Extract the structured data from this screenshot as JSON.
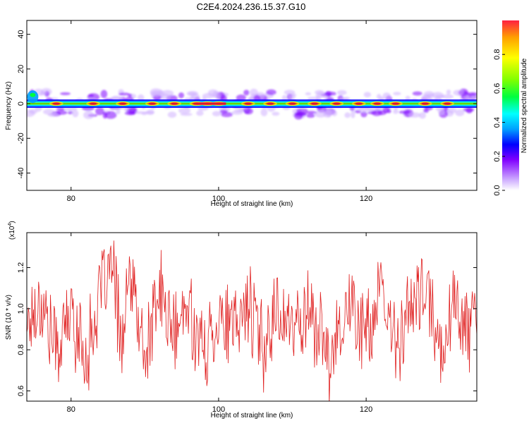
{
  "title": "C2E4.2024.236.15.37.G10",
  "chart_data": [
    {
      "type": "heatmap",
      "xlabel": "Height of straight line (km)",
      "ylabel": "Frequency (Hz)",
      "xlim": [
        74,
        135
      ],
      "ylim": [
        -50,
        48
      ],
      "xticks": [
        80,
        100,
        120
      ],
      "yticks": [
        40,
        20,
        0,
        -20,
        -40
      ],
      "ridge_frequency_hz": 0,
      "ridge_peaks_km": [
        78,
        83,
        87,
        91,
        94,
        97,
        98.5,
        100,
        104,
        107,
        110,
        113,
        116,
        119,
        121.5,
        124,
        128,
        131
      ],
      "colorbar": {
        "label": "Normalized spectral amplitude",
        "range": [
          0,
          1
        ],
        "ticks": [
          "0.0",
          "0.2",
          "0.4",
          "0.6",
          "0.8"
        ]
      },
      "colormap": [
        "#ffffff",
        "#d0b0ff",
        "#8000ff",
        "#0000ff",
        "#00a0ff",
        "#00ffff",
        "#00ff40",
        "#80ff00",
        "#ffff00",
        "#ffa000",
        "#ff2040"
      ]
    },
    {
      "type": "line",
      "xlabel": "Height of straight line (km)",
      "ylabel": "SNR (10 * v/v)",
      "exponent_label": "(x10^4)",
      "exponent_base": "(x10",
      "exponent_power": "4",
      "exponent_close": ")",
      "xlim": [
        74,
        135
      ],
      "ylim": [
        0.55,
        1.37
      ],
      "xticks": [
        80,
        100,
        120
      ],
      "yticks": [
        "0.6",
        "0.8",
        "1.0",
        "1.2"
      ],
      "line_color": "#e02020",
      "x_start": 74,
      "x_step": 0.1,
      "y_seed": 17,
      "approx_points": [
        [
          74,
          0.93
        ],
        [
          76,
          1.1
        ],
        [
          78,
          0.7
        ],
        [
          80,
          1.0
        ],
        [
          82,
          0.63
        ],
        [
          84,
          1.15
        ],
        [
          85.5,
          1.37
        ],
        [
          87,
          0.75
        ],
        [
          88,
          1.3
        ],
        [
          90,
          0.62
        ],
        [
          92,
          1.18
        ],
        [
          94,
          0.8
        ],
        [
          96,
          1.05
        ],
        [
          98,
          0.65
        ],
        [
          100,
          1.0
        ],
        [
          102,
          0.82
        ],
        [
          104,
          1.1
        ],
        [
          106,
          0.72
        ],
        [
          108,
          1.06
        ],
        [
          110,
          0.85
        ],
        [
          112,
          1.04
        ],
        [
          114,
          0.8
        ],
        [
          115,
          0.55
        ],
        [
          116,
          0.9
        ],
        [
          118,
          1.05
        ],
        [
          120,
          0.82
        ],
        [
          122,
          1.12
        ],
        [
          124,
          0.75
        ],
        [
          126,
          1.02
        ],
        [
          128,
          1.18
        ],
        [
          130,
          0.7
        ],
        [
          132,
          1.1
        ],
        [
          134,
          0.85
        ],
        [
          135,
          1.0
        ]
      ]
    }
  ]
}
